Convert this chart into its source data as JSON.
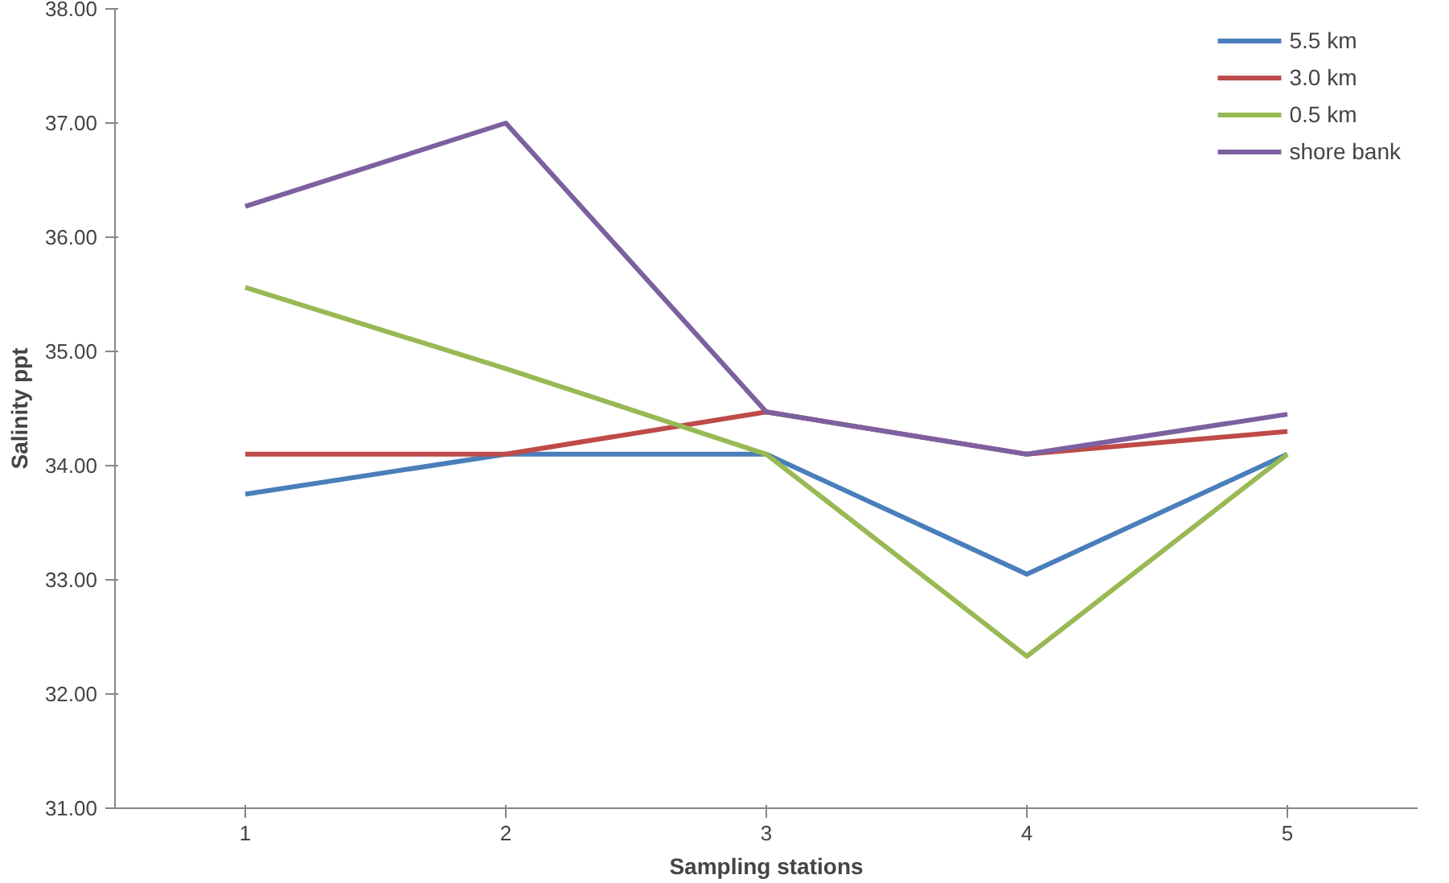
{
  "chart_data": {
    "type": "line",
    "xlabel": "Sampling stations",
    "ylabel": "Salinity ppt",
    "categories": [
      "1",
      "2",
      "3",
      "4",
      "5"
    ],
    "series": [
      {
        "name": "5.5 km",
        "color": "#4a7ebb",
        "values": [
          33.75,
          34.1,
          34.1,
          33.05,
          34.1
        ]
      },
      {
        "name": "3.0 km",
        "color": "#be4b48",
        "values": [
          34.1,
          34.1,
          34.47,
          34.1,
          34.3
        ]
      },
      {
        "name": "0.5 km",
        "color": "#98b954",
        "values": [
          35.56,
          34.85,
          34.1,
          32.33,
          34.1
        ]
      },
      {
        "name": "shore bank",
        "color": "#7d60a0",
        "values": [
          36.27,
          37.0,
          34.47,
          34.1,
          34.45
        ]
      }
    ],
    "ylim": [
      31,
      38
    ],
    "yticks": [
      {
        "value": 31,
        "label": "31.00"
      },
      {
        "value": 32,
        "label": "32.00"
      },
      {
        "value": 33,
        "label": "33.00"
      },
      {
        "value": 34,
        "label": "34.00"
      },
      {
        "value": 35,
        "label": "35.00"
      },
      {
        "value": 36,
        "label": "36.00"
      },
      {
        "value": 37,
        "label": "37.00"
      },
      {
        "value": 38,
        "label": "38.00"
      }
    ],
    "grid": false,
    "legend": "top right",
    "marker": "none",
    "line_style": "solid"
  }
}
